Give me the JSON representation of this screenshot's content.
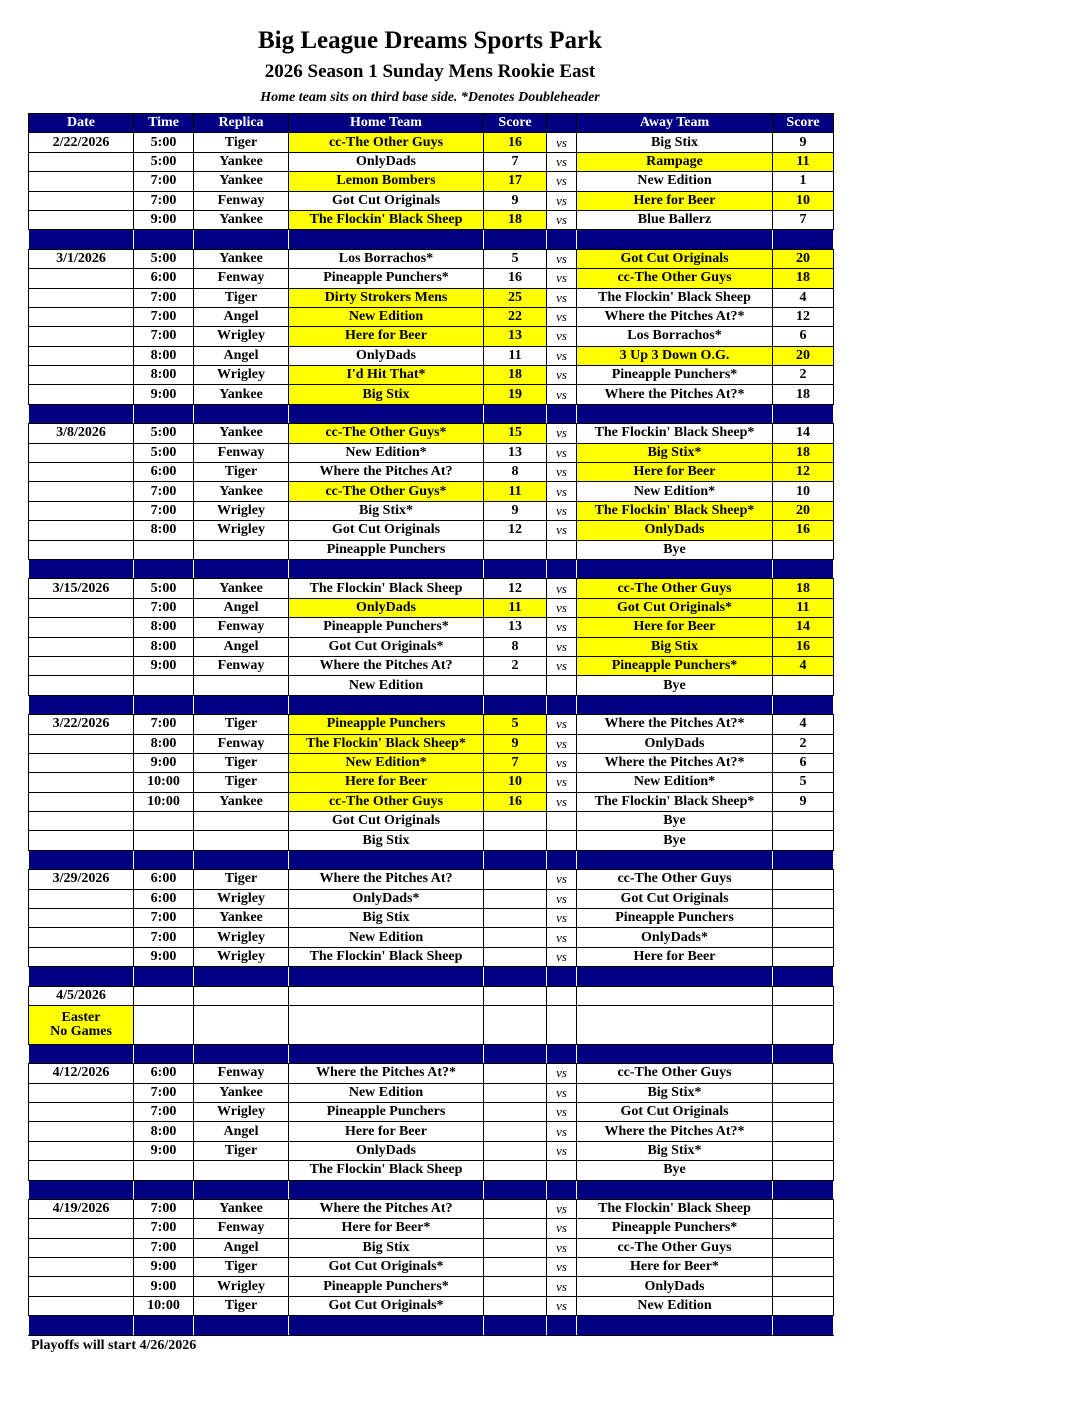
{
  "header": {
    "title": "Big League Dreams Sports Park",
    "subtitle": "2026 Season 1 Sunday Mens Rookie East",
    "note": "Home team sits on third base side.  *Denotes Doubleheader"
  },
  "columns": [
    "Date",
    "Time",
    "Replica",
    "Home Team",
    "Score",
    "",
    "Away Team",
    "Score"
  ],
  "vs_label": "vs",
  "highlight_color": "#ffff00",
  "header_color": "#000080",
  "weeks": [
    {
      "date": "2/22/2026",
      "games": [
        {
          "time": "5:00",
          "replica": "Tiger",
          "home": "cc-The Other Guys",
          "hs": "16",
          "away": "Big Stix",
          "as": "9",
          "winner": "home"
        },
        {
          "time": "5:00",
          "replica": "Yankee",
          "home": "OnlyDads",
          "hs": "7",
          "away": "Rampage",
          "as": "11",
          "winner": "away"
        },
        {
          "time": "7:00",
          "replica": "Yankee",
          "home": "Lemon Bombers",
          "hs": "17",
          "away": "New Edition",
          "as": "1",
          "winner": "home"
        },
        {
          "time": "7:00",
          "replica": "Fenway",
          "home": "Got Cut Originals",
          "hs": "9",
          "away": "Here for Beer",
          "as": "10",
          "winner": "away"
        },
        {
          "time": "9:00",
          "replica": "Yankee",
          "home": "The Flockin' Black Sheep",
          "hs": "18",
          "away": "Blue Ballerz",
          "as": "7",
          "winner": "home"
        }
      ]
    },
    {
      "date": "3/1/2026",
      "games": [
        {
          "time": "5:00",
          "replica": "Yankee",
          "home": "Los Borrachos*",
          "hs": "5",
          "away": "Got Cut Originals",
          "as": "20",
          "winner": "away"
        },
        {
          "time": "6:00",
          "replica": "Fenway",
          "home": "Pineapple Punchers*",
          "hs": "16",
          "away": "cc-The Other Guys",
          "as": "18",
          "winner": "away"
        },
        {
          "time": "7:00",
          "replica": "Tiger",
          "home": "Dirty Strokers Mens",
          "hs": "25",
          "away": "The Flockin' Black Sheep",
          "as": "4",
          "winner": "home"
        },
        {
          "time": "7:00",
          "replica": "Angel",
          "home": "New Edition",
          "hs": "22",
          "away": "Where the Pitches At?*",
          "as": "12",
          "winner": "home"
        },
        {
          "time": "7:00",
          "replica": "Wrigley",
          "home": "Here for Beer",
          "hs": "13",
          "away": "Los Borrachos*",
          "as": "6",
          "winner": "home"
        },
        {
          "time": "8:00",
          "replica": "Angel",
          "home": "OnlyDads",
          "hs": "11",
          "away": "3 Up 3 Down O.G.",
          "as": "20",
          "winner": "away"
        },
        {
          "time": "8:00",
          "replica": "Wrigley",
          "home": "I'd Hit That*",
          "hs": "18",
          "away": "Pineapple Punchers*",
          "as": "2",
          "winner": "home"
        },
        {
          "time": "9:00",
          "replica": "Yankee",
          "home": "Big Stix",
          "hs": "19",
          "away": "Where the Pitches At?*",
          "as": "18",
          "winner": "home"
        }
      ]
    },
    {
      "date": "3/8/2026",
      "games": [
        {
          "time": "5:00",
          "replica": "Yankee",
          "home": "cc-The Other Guys*",
          "hs": "15",
          "away": "The Flockin' Black Sheep*",
          "as": "14",
          "winner": "home"
        },
        {
          "time": "5:00",
          "replica": "Fenway",
          "home": "New Edition*",
          "hs": "13",
          "away": "Big Stix*",
          "as": "18",
          "winner": "away"
        },
        {
          "time": "6:00",
          "replica": "Tiger",
          "home": "Where the Pitches At?",
          "hs": "8",
          "away": "Here for Beer",
          "as": "12",
          "winner": "away"
        },
        {
          "time": "7:00",
          "replica": "Yankee",
          "home": "cc-The Other Guys*",
          "hs": "11",
          "away": "New Edition*",
          "as": "10",
          "winner": "home"
        },
        {
          "time": "7:00",
          "replica": "Wrigley",
          "home": "Big Stix*",
          "hs": "9",
          "away": "The Flockin' Black Sheep*",
          "as": "20",
          "winner": "away"
        },
        {
          "time": "8:00",
          "replica": "Wrigley",
          "home": "Got Cut Originals",
          "hs": "12",
          "away": "OnlyDads",
          "as": "16",
          "winner": "away"
        },
        {
          "time": "",
          "replica": "",
          "home": "Pineapple Punchers",
          "hs": "",
          "away": "Bye",
          "as": "",
          "winner": null,
          "bye": true
        }
      ]
    },
    {
      "date": "3/15/2026",
      "games": [
        {
          "time": "5:00",
          "replica": "Yankee",
          "home": "The Flockin' Black Sheep",
          "hs": "12",
          "away": "cc-The Other Guys",
          "as": "18",
          "winner": "away"
        },
        {
          "time": "7:00",
          "replica": "Angel",
          "home": "OnlyDads",
          "hs": "11",
          "away": "Got Cut Originals*",
          "as": "11",
          "winner": "both"
        },
        {
          "time": "8:00",
          "replica": "Fenway",
          "home": "Pineapple Punchers*",
          "hs": "13",
          "away": "Here for Beer",
          "as": "14",
          "winner": "away"
        },
        {
          "time": "8:00",
          "replica": "Angel",
          "home": "Got Cut Originals*",
          "hs": "8",
          "away": "Big Stix",
          "as": "16",
          "winner": "away"
        },
        {
          "time": "9:00",
          "replica": "Fenway",
          "home": "Where the Pitches At?",
          "hs": "2",
          "away": "Pineapple Punchers*",
          "as": "4",
          "winner": "away"
        },
        {
          "time": "",
          "replica": "",
          "home": "New Edition",
          "hs": "",
          "away": "Bye",
          "as": "",
          "winner": null,
          "bye": true
        }
      ]
    },
    {
      "date": "3/22/2026",
      "games": [
        {
          "time": "7:00",
          "replica": "Tiger",
          "home": "Pineapple Punchers",
          "hs": "5",
          "away": "Where the Pitches At?*",
          "as": "4",
          "winner": "home"
        },
        {
          "time": "8:00",
          "replica": "Fenway",
          "home": "The Flockin' Black Sheep*",
          "hs": "9",
          "away": "OnlyDads",
          "as": "2",
          "winner": "home"
        },
        {
          "time": "9:00",
          "replica": "Tiger",
          "home": "New Edition*",
          "hs": "7",
          "away": "Where the Pitches At?*",
          "as": "6",
          "winner": "home"
        },
        {
          "time": "10:00",
          "replica": "Tiger",
          "home": "Here for Beer",
          "hs": "10",
          "away": "New Edition*",
          "as": "5",
          "winner": "home"
        },
        {
          "time": "10:00",
          "replica": "Yankee",
          "home": "cc-The Other Guys",
          "hs": "16",
          "away": "The Flockin' Black Sheep*",
          "as": "9",
          "winner": "home"
        },
        {
          "time": "",
          "replica": "",
          "home": "Got Cut Originals",
          "hs": "",
          "away": "Bye",
          "as": "",
          "winner": null,
          "bye": true
        },
        {
          "time": "",
          "replica": "",
          "home": "Big Stix",
          "hs": "",
          "away": "Bye",
          "as": "",
          "winner": null,
          "bye": true
        }
      ]
    },
    {
      "date": "3/29/2026",
      "games": [
        {
          "time": "6:00",
          "replica": "Tiger",
          "home": "Where the Pitches At?",
          "hs": "",
          "away": "cc-The Other Guys",
          "as": "",
          "winner": null
        },
        {
          "time": "6:00",
          "replica": "Wrigley",
          "home": "OnlyDads*",
          "hs": "",
          "away": "Got Cut Originals",
          "as": "",
          "winner": null
        },
        {
          "time": "7:00",
          "replica": "Yankee",
          "home": "Big Stix",
          "hs": "",
          "away": "Pineapple Punchers",
          "as": "",
          "winner": null
        },
        {
          "time": "7:00",
          "replica": "Wrigley",
          "home": "New Edition",
          "hs": "",
          "away": "OnlyDads*",
          "as": "",
          "winner": null
        },
        {
          "time": "9:00",
          "replica": "Wrigley",
          "home": "The Flockin' Black Sheep",
          "hs": "",
          "away": "Here for Beer",
          "as": "",
          "winner": null
        }
      ]
    },
    {
      "date": "4/5/2026",
      "holiday": "Easter",
      "holiday_note": "No Games",
      "games": []
    },
    {
      "date": "4/12/2026",
      "games": [
        {
          "time": "6:00",
          "replica": "Fenway",
          "home": "Where the Pitches At?*",
          "hs": "",
          "away": "cc-The Other Guys",
          "as": "",
          "winner": null
        },
        {
          "time": "7:00",
          "replica": "Yankee",
          "home": "New Edition",
          "hs": "",
          "away": "Big Stix*",
          "as": "",
          "winner": null
        },
        {
          "time": "7:00",
          "replica": "Wrigley",
          "home": "Pineapple Punchers",
          "hs": "",
          "away": "Got Cut Originals",
          "as": "",
          "winner": null
        },
        {
          "time": "8:00",
          "replica": "Angel",
          "home": "Here for Beer",
          "hs": "",
          "away": "Where the Pitches At?*",
          "as": "",
          "winner": null
        },
        {
          "time": "9:00",
          "replica": "Tiger",
          "home": "OnlyDads",
          "hs": "",
          "away": "Big Stix*",
          "as": "",
          "winner": null
        },
        {
          "time": "",
          "replica": "",
          "home": "The Flockin' Black Sheep",
          "hs": "",
          "away": "Bye",
          "as": "",
          "winner": null,
          "bye": true
        }
      ]
    },
    {
      "date": "4/19/2026",
      "games": [
        {
          "time": "7:00",
          "replica": "Yankee",
          "home": "Where the Pitches At?",
          "hs": "",
          "away": "The Flockin' Black Sheep",
          "as": "",
          "winner": null
        },
        {
          "time": "7:00",
          "replica": "Fenway",
          "home": "Here for Beer*",
          "hs": "",
          "away": "Pineapple Punchers*",
          "as": "",
          "winner": null
        },
        {
          "time": "7:00",
          "replica": "Angel",
          "home": "Big Stix",
          "hs": "",
          "away": "cc-The Other Guys",
          "as": "",
          "winner": null
        },
        {
          "time": "9:00",
          "replica": "Tiger",
          "home": "Got Cut Originals*",
          "hs": "",
          "away": "Here for Beer*",
          "as": "",
          "winner": null
        },
        {
          "time": "9:00",
          "replica": "Wrigley",
          "home": "Pineapple Punchers*",
          "hs": "",
          "away": "OnlyDads",
          "as": "",
          "winner": null
        },
        {
          "time": "10:00",
          "replica": "Tiger",
          "home": "Got Cut Originals*",
          "hs": "",
          "away": "New Edition",
          "as": "",
          "winner": null
        }
      ]
    }
  ],
  "footer": "Playoffs will start 4/26/2026"
}
